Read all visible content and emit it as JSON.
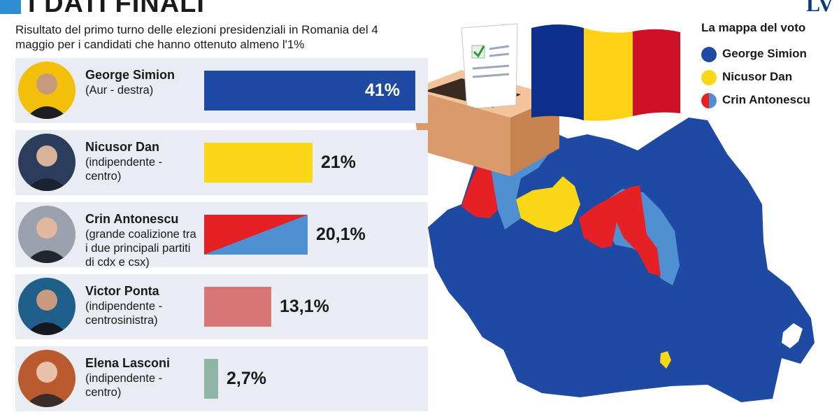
{
  "header": {
    "title": "I DATI FINALI",
    "logo": "LV",
    "subtitle": "Risultato del primo turno delle elezioni presidenziali in Romania del 4 maggio per i candidati che hanno ottenuto almeno l'1%"
  },
  "chart_data": {
    "type": "bar",
    "orientation": "horizontal",
    "title": "I DATI FINALI",
    "subtitle": "Risultato del primo turno delle elezioni presidenziali in Romania del 4 maggio per i candidati che hanno ottenuto almeno l'1%",
    "categories": [
      "George Simion",
      "Nicusor Dan",
      "Crin Antonescu",
      "Victor Ponta",
      "Elena Lasconi"
    ],
    "parties": [
      "(Aur - destra)",
      "(indipendente - centro)",
      "(grande coalizione tra i due principali partiti di cdx e csx)",
      "(indipendente - centrosinistra)",
      "(indipendente - centro)"
    ],
    "values": [
      41,
      21,
      20.1,
      13.1,
      2.7
    ],
    "value_labels": [
      "41%",
      "21%",
      "20,1%",
      "13,1%",
      "2,7%"
    ],
    "colors": [
      "#1f4aa3",
      "#fad817",
      "#e52126",
      "#d77677",
      "#8fb5a7"
    ],
    "secondary_color_antonescu": "#4f90d2",
    "xlim": [
      0,
      41
    ],
    "grid": false,
    "xlabel": "",
    "ylabel": ""
  },
  "legend": {
    "title": "La mappa del voto",
    "items": [
      {
        "label": "George Simion",
        "color": "#1f4aa3"
      },
      {
        "label": "Nicusor Dan",
        "color": "#fad817"
      },
      {
        "label": "Crin Antonescu",
        "color": "#e52126",
        "color2": "#4f90d2"
      }
    ]
  },
  "map": {
    "base_color": "#1f4aa3",
    "flag_colors": [
      "#0b2f8a",
      "#fcd116",
      "#ce1126"
    ]
  }
}
